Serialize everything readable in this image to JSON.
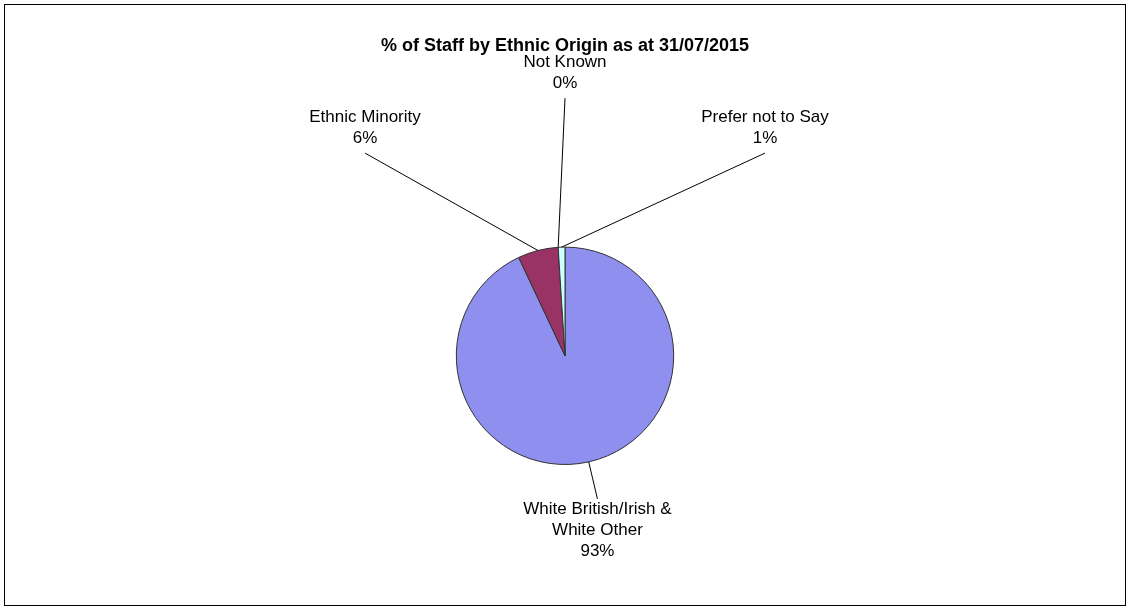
{
  "chart_data": {
    "type": "pie",
    "title": "% of Staff by Ethnic Origin as at 31/07/2015",
    "categories": [
      "White British/Irish & White Other",
      "Ethnic Minority",
      "Not Known",
      "Prefer not to Say"
    ],
    "values": [
      93,
      6,
      0,
      1
    ],
    "value_labels": [
      "93%",
      "6%",
      "0%",
      "1%"
    ],
    "colors": [
      "#8f8fef",
      "#993366",
      "#ffffcc",
      "#ccffff"
    ],
    "legend": false
  }
}
